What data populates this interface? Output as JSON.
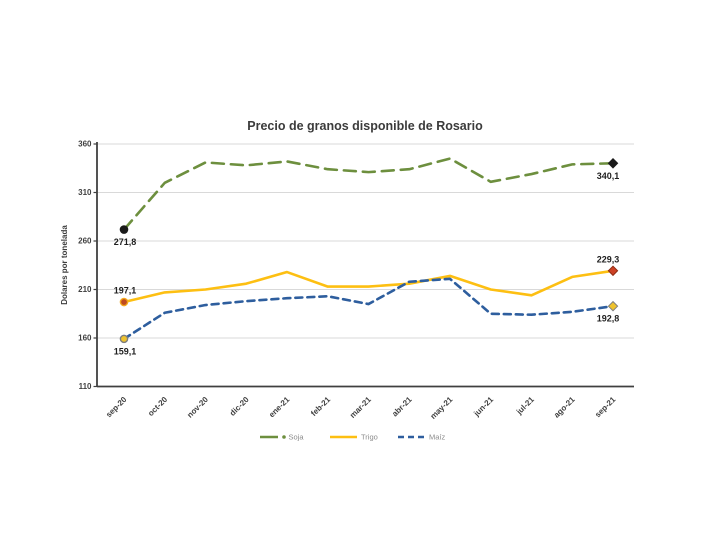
{
  "page": {
    "background": "#ffffff"
  },
  "chart_data": {
    "type": "line",
    "title": "Precio de granos disponible de Rosario",
    "ylabel": "Dolares por tonelada",
    "xlabel": "",
    "ylim": [
      110,
      360
    ],
    "yticks": [
      360,
      310,
      260,
      210,
      160,
      110
    ],
    "grid": "horizontal",
    "legend_position": "bottom",
    "colors": {
      "grid": "#d9d9d9",
      "axis": "#404040",
      "tick_text": "#404040",
      "legend_text": "#8c8c8c"
    },
    "categories": [
      "sep-20",
      "oct-20",
      "nov-20",
      "dic-20",
      "ene-21",
      "feb-21",
      "mar-21",
      "abr-21",
      "may-21",
      "jun-21",
      "jul-21",
      "ago-21",
      "sep-21"
    ],
    "series": [
      {
        "name": "Soja",
        "color": "#6d8f3e",
        "style": "dashed",
        "dash": "12 7",
        "values": [
          271.8,
          320,
          341,
          338,
          342,
          334,
          331,
          334,
          345,
          321,
          329,
          339,
          340.1
        ],
        "endpoint_labels": {
          "first": {
            "text": "271,8",
            "pos": "below"
          },
          "last": {
            "text": "340,1",
            "pos": "below"
          }
        },
        "markers": {
          "first": {
            "shape": "circle",
            "fill": "#1a1a1a",
            "stroke": "#1a1a1a"
          },
          "last": {
            "shape": "diamond",
            "fill": "#1a1a1a",
            "stroke": "#1a1a1a"
          }
        }
      },
      {
        "name": "Trigo",
        "color": "#fdbf12",
        "style": "solid",
        "dash": null,
        "values": [
          197.1,
          207,
          210,
          216,
          228,
          213,
          213,
          216,
          224,
          210,
          204,
          223,
          229.3
        ],
        "endpoint_labels": {
          "first": {
            "text": "197,1",
            "pos": "above"
          },
          "last": {
            "text": "229,3",
            "pos": "above"
          }
        },
        "markers": {
          "first": {
            "shape": "circle",
            "fill": "#bf4a1f",
            "stroke": "#f3a71c"
          },
          "last": {
            "shape": "diamond",
            "fill": "#cc4125",
            "stroke": "#8f2c12"
          }
        }
      },
      {
        "name": "Maíz",
        "color": "#2e5e9e",
        "style": "dashed",
        "dash": "7 5",
        "values": [
          159.1,
          186,
          194,
          198,
          201,
          203,
          195,
          218,
          221,
          185,
          184,
          187,
          192.8
        ],
        "endpoint_labels": {
          "first": {
            "text": "159,1",
            "pos": "below"
          },
          "last": {
            "text": "192,8",
            "pos": "below"
          }
        },
        "markers": {
          "first": {
            "shape": "circle",
            "fill": "#eec22d",
            "stroke": "#7f7f7f"
          },
          "last": {
            "shape": "diamond",
            "fill": "#eec22d",
            "stroke": "#7f7f7f"
          }
        }
      }
    ]
  }
}
